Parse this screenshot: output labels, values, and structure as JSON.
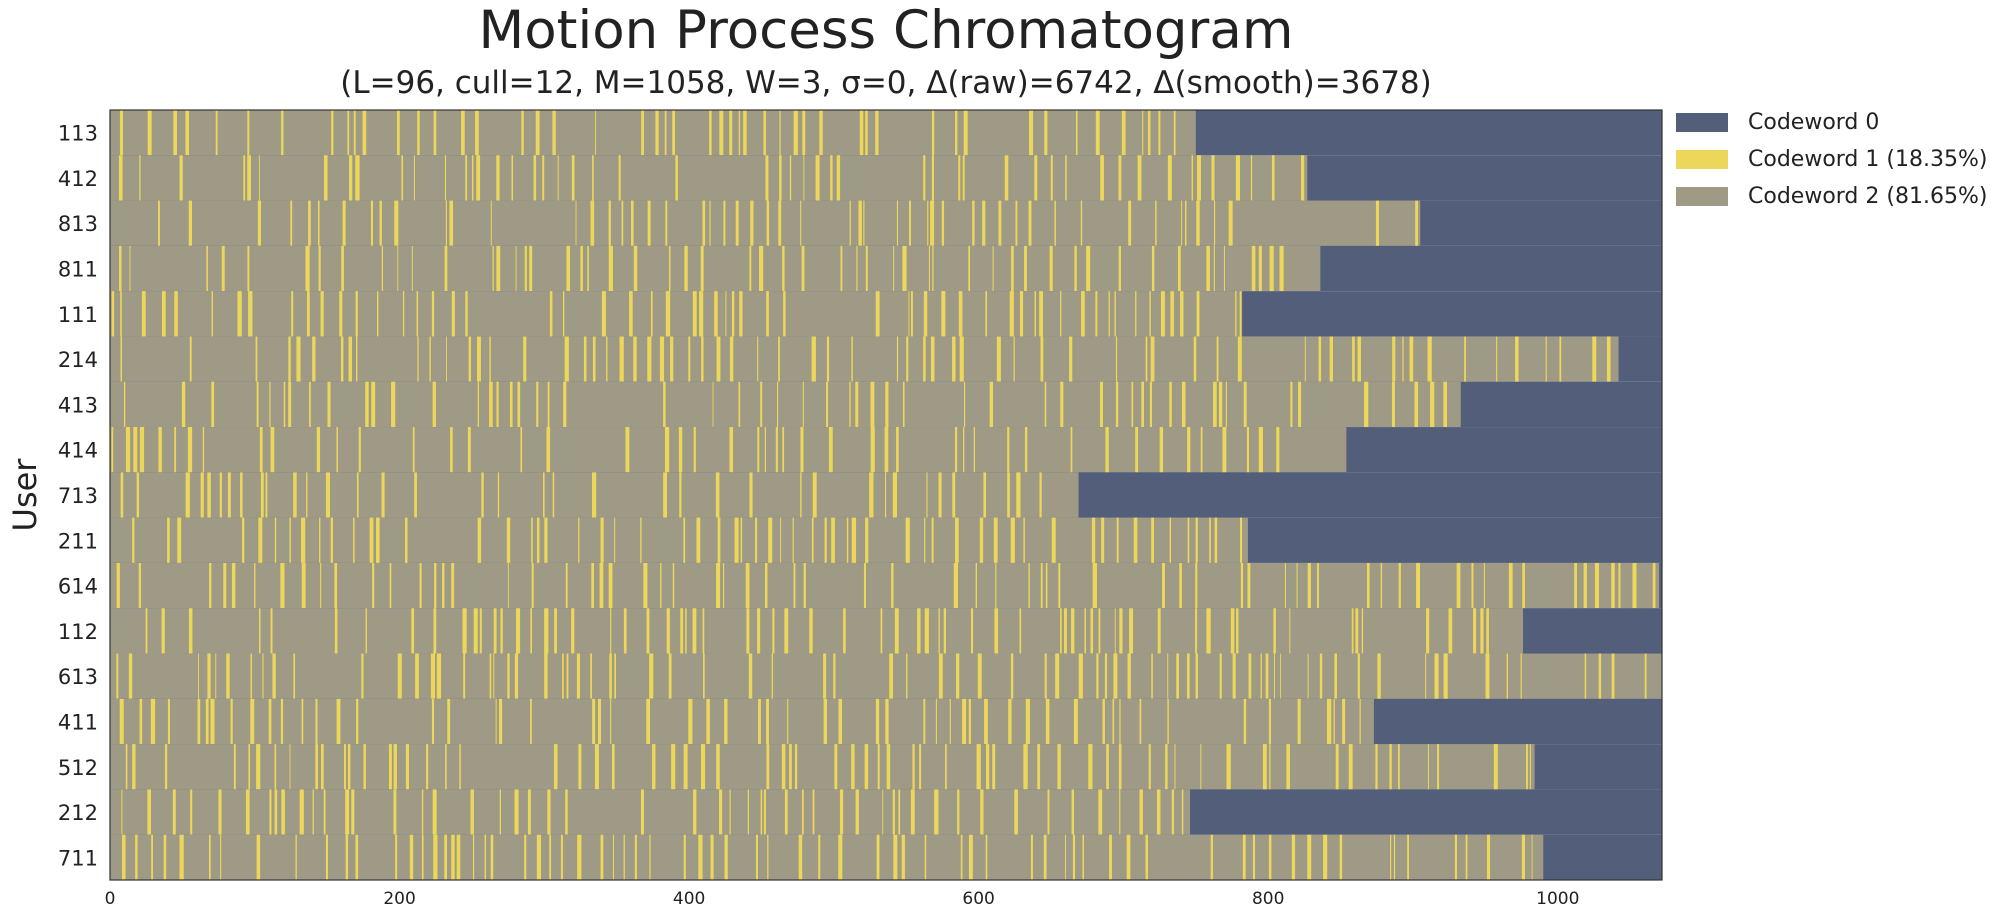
{
  "chart_data": {
    "type": "heatmap",
    "title": "Motion Process Chromatogram",
    "subtitle": "(L=96, cull=12, M=1058, W=3, σ=0, Δ(raw)=6742, Δ(smooth)=3678)",
    "xlabel": "",
    "ylabel": "User",
    "xlim": [
      0,
      1072
    ],
    "x_ticks": [
      "0",
      "200",
      "400",
      "600",
      "800",
      "1000"
    ],
    "x_tick_values": [
      0,
      200,
      400,
      600,
      800,
      1000
    ],
    "grid": false,
    "legend_position": "outside-top-right",
    "rows": [
      {
        "user": "113",
        "length": 750
      },
      {
        "user": "412",
        "length": 827
      },
      {
        "user": "813",
        "length": 905
      },
      {
        "user": "811",
        "length": 836
      },
      {
        "user": "111",
        "length": 782
      },
      {
        "user": "214",
        "length": 1042
      },
      {
        "user": "413",
        "length": 933
      },
      {
        "user": "414",
        "length": 854
      },
      {
        "user": "713",
        "length": 669
      },
      {
        "user": "211",
        "length": 786
      },
      {
        "user": "614",
        "length": 1070
      },
      {
        "user": "112",
        "length": 976
      },
      {
        "user": "613",
        "length": 1072
      },
      {
        "user": "411",
        "length": 873
      },
      {
        "user": "512",
        "length": 984
      },
      {
        "user": "212",
        "length": 746
      },
      {
        "user": "711",
        "length": 990
      }
    ],
    "legend": [
      {
        "label": "Codeword 0",
        "color": "#535e7b"
      },
      {
        "label": "Codeword 1 (18.35%)",
        "color": "#ecd75a"
      },
      {
        "label": "Codeword 2 (81.65%)",
        "color": "#9e9a86"
      }
    ],
    "codeword1_fraction": 0.1835,
    "codeword2_fraction": 0.8165
  }
}
